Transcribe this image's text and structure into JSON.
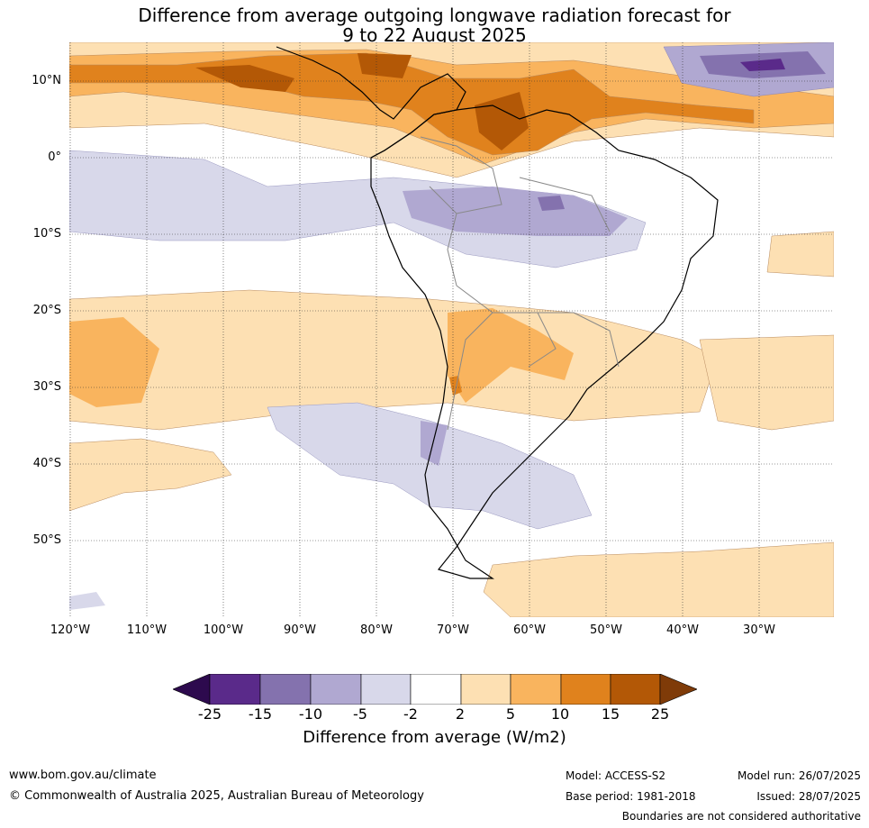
{
  "title_line1": "Difference from average outgoing longwave radiation forecast for",
  "title_line2": "9 to 22 August 2025",
  "lat_labels": [
    "10°N",
    "0°",
    "10°S",
    "20°S",
    "30°S",
    "40°S",
    "50°S"
  ],
  "lon_labels": [
    "120°W",
    "110°W",
    "100°W",
    "90°W",
    "80°W",
    "70°W",
    "60°W",
    "50°W",
    "40°W",
    "30°W"
  ],
  "colorbar": {
    "ticks": [
      "-25",
      "-15",
      "-10",
      "-5",
      "-2",
      "2",
      "5",
      "10",
      "15",
      "25"
    ],
    "colors": [
      "#2d0a4e",
      "#5a2a8a",
      "#8472ae",
      "#b0a8d1",
      "#d8d8ea",
      "#ffffff",
      "#fde0b3",
      "#f9b45e",
      "#e0821d",
      "#b35806",
      "#7f3b08"
    ],
    "label": "Difference from average (W/m2)"
  },
  "footer": {
    "website": "www.bom.gov.au/climate",
    "copyright": "© Commonwealth of Australia 2025, Australian Bureau of Meteorology",
    "model": "Model: ACCESS-S2",
    "base_period": "Base period: 1981-2018",
    "model_run": "Model run: 26/07/2025",
    "issued": "Issued: 28/07/2025",
    "disclaimer": "Boundaries are not considered authoritative"
  }
}
